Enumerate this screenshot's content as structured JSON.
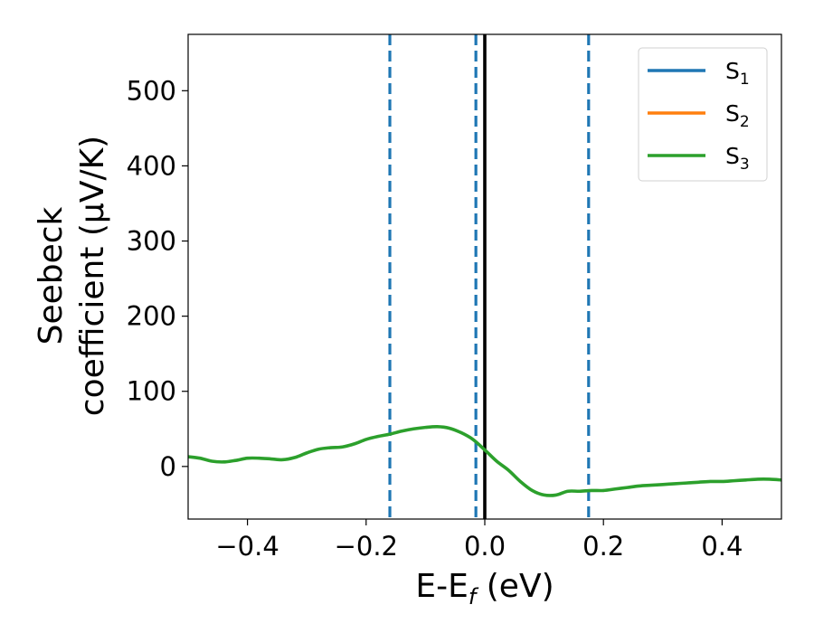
{
  "chart_data": {
    "type": "line",
    "xlabel": "E-E_f (eV)",
    "xlabel_parts": [
      "E-E",
      "f",
      " (eV)"
    ],
    "ylabel_lines": [
      "Seebeck",
      "coefficient  (μV/K)"
    ],
    "xlim": [
      -0.5,
      0.5
    ],
    "ylim": [
      -70,
      575
    ],
    "xticks": [
      -0.4,
      -0.2,
      0.0,
      0.2,
      0.4
    ],
    "xtick_labels": [
      "−0.4",
      "−0.2",
      "0.0",
      "0.2",
      "0.4"
    ],
    "yticks": [
      0,
      100,
      200,
      300,
      400,
      500
    ],
    "ytick_labels": [
      "0",
      "100",
      "200",
      "300",
      "400",
      "500"
    ],
    "grid": false,
    "legend_position": "top-right",
    "legend": [
      {
        "label": "S",
        "sub": "1",
        "color": "#1f77b4"
      },
      {
        "label": "S",
        "sub": "2",
        "color": "#ff7f0e"
      },
      {
        "label": "S",
        "sub": "3",
        "color": "#2ca02c"
      }
    ],
    "series": [
      {
        "name": "S3",
        "color": "#2ca02c",
        "x": [
          -0.5,
          -0.48,
          -0.46,
          -0.44,
          -0.42,
          -0.4,
          -0.38,
          -0.36,
          -0.34,
          -0.32,
          -0.3,
          -0.28,
          -0.26,
          -0.24,
          -0.22,
          -0.2,
          -0.18,
          -0.16,
          -0.14,
          -0.12,
          -0.1,
          -0.08,
          -0.06,
          -0.04,
          -0.02,
          0.0,
          0.02,
          0.04,
          0.06,
          0.08,
          0.1,
          0.12,
          0.14,
          0.16,
          0.18,
          0.2,
          0.22,
          0.24,
          0.26,
          0.28,
          0.3,
          0.32,
          0.34,
          0.36,
          0.38,
          0.4,
          0.42,
          0.44,
          0.46,
          0.48,
          0.5
        ],
        "y": [
          13,
          11,
          7,
          6,
          8,
          11,
          11,
          10,
          9,
          12,
          18,
          23,
          25,
          26,
          30,
          36,
          40,
          43,
          47,
          50,
          52,
          53,
          51,
          45,
          36,
          22,
          7,
          -5,
          -20,
          -32,
          -38,
          -38,
          -33,
          -33,
          -32,
          -32,
          -30,
          -28,
          -26,
          -25,
          -24,
          -23,
          -22,
          -21,
          -20,
          -20,
          -19,
          -18,
          -17,
          -17,
          -18
        ]
      }
    ],
    "vlines": [
      {
        "x": -0.16,
        "color": "#1f77b4",
        "style": "dashed"
      },
      {
        "x": -0.015,
        "color": "#1f77b4",
        "style": "dashed"
      },
      {
        "x": 0.175,
        "color": "#1f77b4",
        "style": "dashed"
      },
      {
        "x": 0.0,
        "color": "#000000",
        "style": "solid"
      }
    ]
  }
}
